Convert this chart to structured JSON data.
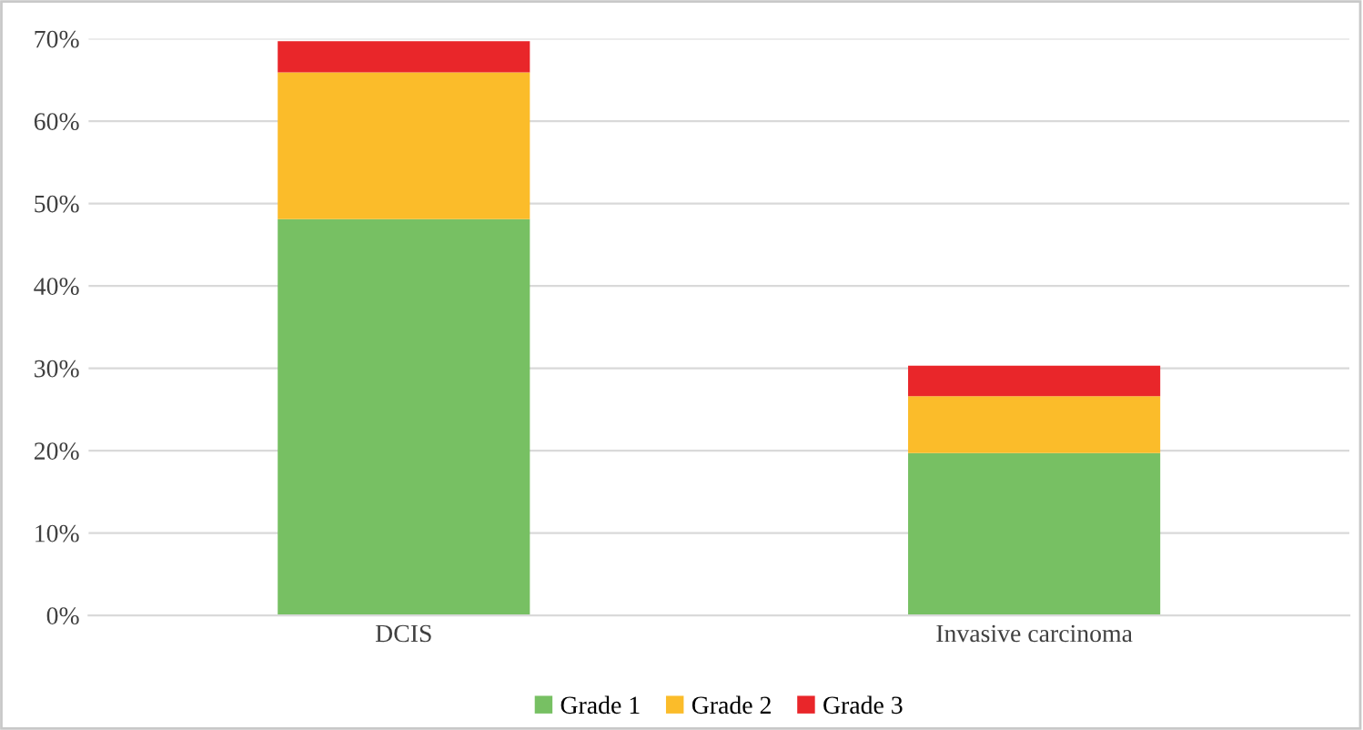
{
  "chart_data": {
    "type": "bar",
    "stacked": true,
    "categories": [
      "DCIS",
      "Invasive carcinoma"
    ],
    "series": [
      {
        "name": "Grade 1",
        "color": "#77c063",
        "values": [
          48.1,
          19.7
        ]
      },
      {
        "name": "Grade 2",
        "color": "#fbbc2a",
        "values": [
          17.8,
          6.9
        ]
      },
      {
        "name": "Grade 3",
        "color": "#e9262a",
        "values": [
          3.8,
          3.7
        ]
      }
    ],
    "ylim": [
      0,
      70
    ],
    "yticks": [
      {
        "value": 0,
        "label": "0%"
      },
      {
        "value": 10,
        "label": "10%"
      },
      {
        "value": 20,
        "label": "20%"
      },
      {
        "value": 30,
        "label": "30%"
      },
      {
        "value": 40,
        "label": "40%"
      },
      {
        "value": 50,
        "label": "50%"
      },
      {
        "value": 60,
        "label": "60%"
      },
      {
        "value": 70,
        "label": "70%"
      }
    ],
    "grid": "y",
    "legend": "bottom"
  }
}
